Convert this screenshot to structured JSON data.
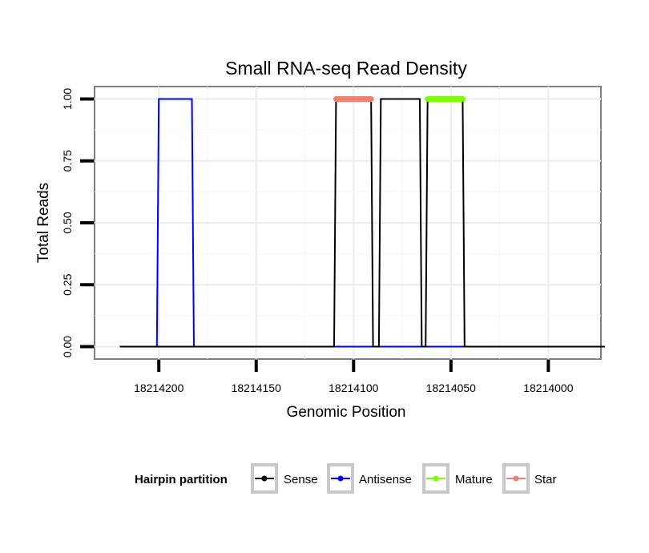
{
  "chart_data": {
    "type": "line",
    "title": "Small RNA-seq Read Density",
    "xlabel": "Genomic Position",
    "ylabel": "Total Reads",
    "x_reversed": true,
    "xlim": [
      18214233,
      18213973
    ],
    "ylim": [
      -0.05,
      1.05
    ],
    "x_ticks": [
      18214200,
      18214150,
      18214100,
      18214050,
      18214000
    ],
    "x_tick_labels": [
      "18214200",
      "18214150",
      "18214100",
      "18214050",
      "18214000"
    ],
    "y_ticks": [
      0,
      0.25,
      0.5,
      0.75,
      1
    ],
    "y_tick_labels": [
      "0.00",
      "0.25",
      "0.50",
      "0.75",
      "1.00"
    ],
    "grid": true,
    "legend": {
      "title": "Hairpin partition",
      "position": "bottom",
      "entries": [
        "Sense",
        "Antisense",
        "Mature",
        "Star"
      ]
    },
    "series": [
      {
        "name": "Sense",
        "color": "#000000",
        "x": [
          18214220,
          18214110,
          18214109,
          18214091,
          18214090,
          18214087,
          18214086,
          18214066,
          18214065,
          18214063,
          18214062,
          18214044,
          18214043,
          18213971
        ],
        "y": [
          0,
          0,
          1,
          1,
          0,
          0,
          1,
          1,
          0,
          0,
          1,
          1,
          0,
          0
        ]
      },
      {
        "name": "Antisense",
        "color": "#0000ff",
        "x": [
          18214220,
          18214201,
          18214200,
          18214183,
          18214182,
          18213971
        ],
        "y": [
          0,
          0,
          1,
          1,
          0,
          0
        ]
      },
      {
        "name": "Mature",
        "color": "#7cfc00",
        "x": [
          18214062,
          18214044
        ],
        "y": [
          1,
          1
        ]
      },
      {
        "name": "Star",
        "color": "#f08070",
        "x": [
          18214109,
          18214091
        ],
        "y": [
          1,
          1
        ]
      }
    ]
  }
}
